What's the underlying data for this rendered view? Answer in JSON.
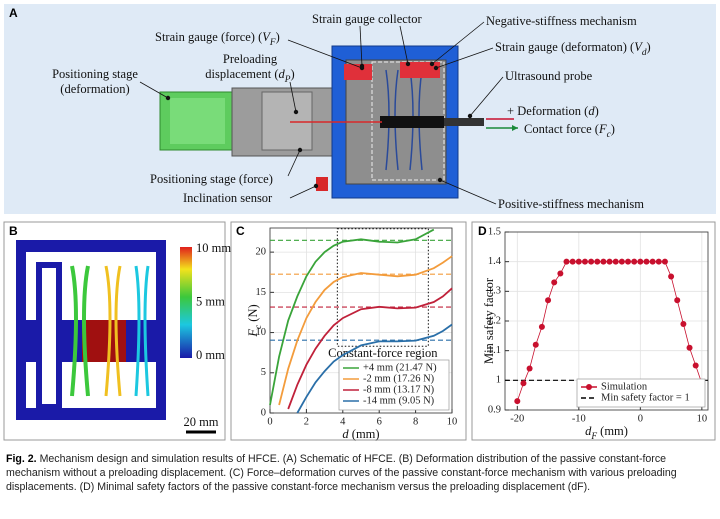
{
  "figure_a": {
    "letter": "A",
    "labels": [
      {
        "lines": [
          [
            {
              "t": "Strain gauge (force) ("
            },
            {
              "t": "V",
              "i": true
            },
            {
              "t": "F",
              "i": true,
              "sub": true
            },
            {
              "t": ")"
            }
          ]
        ]
      },
      {
        "lines": [
          "Strain gauge collector"
        ]
      },
      {
        "lines": [
          "Negative-stiffness mechanism"
        ]
      },
      {
        "lines": [
          [
            {
              "t": "Strain gauge (deformaton) ("
            },
            {
              "t": "V",
              "i": true
            },
            {
              "t": "d",
              "i": true,
              "sub": true
            },
            {
              "t": ")"
            }
          ]
        ]
      },
      {
        "lines": [
          "Ultrasound probe"
        ]
      },
      {
        "lines": [
          "Preloading",
          [
            {
              "t": "displacement ("
            },
            {
              "t": "d",
              "i": true
            },
            {
              "t": "P",
              "i": true,
              "sub": true
            },
            {
              "t": ")"
            }
          ]
        ]
      },
      {
        "lines": [
          "Positioning stage",
          "(deformation)"
        ]
      },
      {
        "lines": [
          [
            {
              "t": "+"
            },
            {
              "t": "  Deformation ("
            },
            {
              "t": "d",
              "i": true
            },
            {
              "t": ")"
            }
          ]
        ]
      },
      {
        "lines": [
          [
            {
              "t": "Contact force ("
            },
            {
              "t": "F",
              "i": true
            },
            {
              "t": "c",
              "i": true,
              "sub": true
            },
            {
              "t": ")"
            }
          ]
        ]
      },
      {
        "lines": [
          "Positioning stage (force)"
        ]
      },
      {
        "lines": [
          "Inclination sensor"
        ]
      },
      {
        "lines": [
          "Positive-stiffness mechanism"
        ]
      }
    ]
  },
  "figure_b": {
    "letter": "B",
    "colorbar": [
      "10 mm",
      "5 mm",
      "0 mm"
    ],
    "scale_bar": "20 mm"
  },
  "chart_data": [
    {
      "type": "line",
      "letter": "C",
      "x": [
        0,
        0.5,
        1,
        1.5,
        2,
        2.5,
        3,
        3.5,
        4,
        5,
        6,
        7,
        8,
        9,
        9.5,
        10
      ],
      "series": [
        {
          "name": "+4 mm (21.47 N)",
          "color": "#3aa43a",
          "values": [
            1,
            7,
            11.5,
            14.5,
            17,
            18.8,
            20,
            20.8,
            21.3,
            21.6,
            21.3,
            21.2,
            21.6,
            22.8,
            null,
            null
          ]
        },
        {
          "name": "-2 mm (17.26 N)",
          "color": "#f39c3c",
          "values": [
            null,
            1,
            5.5,
            9,
            11.8,
            13.8,
            15.3,
            16.3,
            16.9,
            17.4,
            17.2,
            17,
            17.2,
            18,
            18.7,
            19.5
          ]
        },
        {
          "name": "-8 mm (13.17 N)",
          "color": "#c0213a",
          "values": [
            null,
            null,
            0.5,
            3.5,
            6,
            8,
            9.6,
            10.9,
            11.8,
            12.9,
            13.2,
            13,
            13.1,
            13.8,
            14.5,
            15.5
          ]
        },
        {
          "name": "-14 mm (9.05 N)",
          "color": "#2a6fa8",
          "values": [
            null,
            null,
            null,
            0,
            2,
            3.8,
            5.2,
            6.4,
            7.2,
            8.4,
            8.9,
            8.9,
            9,
            9.6,
            10.2,
            11
          ]
        }
      ],
      "reference_lines": [
        {
          "value": 21.47,
          "color": "#3aa43a"
        },
        {
          "value": 17.26,
          "color": "#f39c3c"
        },
        {
          "value": 13.17,
          "color": "#c0213a"
        },
        {
          "value": 9.05,
          "color": "#2a6fa8"
        }
      ],
      "region": {
        "label": "Constant-force region",
        "x": [
          3.7,
          8.7
        ],
        "y": [
          8.3,
          22.9
        ]
      },
      "xlim": [
        0,
        10
      ],
      "ylim": [
        0,
        23
      ],
      "xticks": [
        0,
        2,
        4,
        6,
        8,
        10
      ],
      "yticks": [
        0,
        5,
        10,
        15,
        20
      ],
      "xlabel": [
        {
          "t": "d",
          "i": true
        },
        {
          "t": " (mm)"
        }
      ],
      "ylabel": [
        {
          "t": "F",
          "i": true
        },
        {
          "t": "c",
          "i": true,
          "sub": true
        },
        {
          "t": " (N)"
        }
      ],
      "legend": "lower right"
    },
    {
      "type": "line",
      "letter": "D",
      "markers": true,
      "x": [
        -20,
        -19,
        -18,
        -17,
        -16,
        -15,
        -14,
        -13,
        -12,
        -11,
        -10,
        -9,
        -8,
        -7,
        -6,
        -5,
        -4,
        -3,
        -2,
        -1,
        0,
        1,
        2,
        3,
        4,
        5,
        6,
        7,
        8,
        9,
        10
      ],
      "series": [
        {
          "name": "Simulation",
          "color": "#c8102e",
          "values": [
            0.93,
            0.99,
            1.04,
            1.12,
            1.18,
            1.27,
            1.33,
            1.36,
            1.4,
            1.4,
            1.4,
            1.4,
            1.4,
            1.4,
            1.4,
            1.4,
            1.4,
            1.4,
            1.4,
            1.4,
            1.4,
            1.4,
            1.4,
            1.4,
            1.4,
            1.35,
            1.27,
            1.19,
            1.11,
            1.05,
            0.99
          ]
        }
      ],
      "reference_lines": [
        {
          "value": 1,
          "color": "#000000",
          "name": "Min safety factor = 1"
        }
      ],
      "xlim": [
        -22,
        11
      ],
      "ylim": [
        0.9,
        1.5
      ],
      "xticks": [
        -20,
        -10,
        0,
        10
      ],
      "yticks": [
        0.9,
        1,
        1.1,
        1.2,
        1.3,
        1.4,
        1.5
      ],
      "xlabel": [
        {
          "t": "d",
          "i": true
        },
        {
          "t": "F",
          "i": true,
          "sub": true
        },
        {
          "t": " (mm)"
        }
      ],
      "ylabel": "Min safety factor",
      "legend": "lower right"
    }
  ],
  "caption": {
    "label": "Fig. 2.",
    "text": "Mechanism design and simulation results of HFCE. (A) Schematic of HFCE. (B) Deformation distribution of the passive constant-force mechanism without a preloading displacement. (C) Force–deformation curves of the passive constant-force mechanism with various preloading displacements. (D) Minimal safety factors of the passive constant-force mechanism versus the preloading displacement (dF)."
  }
}
